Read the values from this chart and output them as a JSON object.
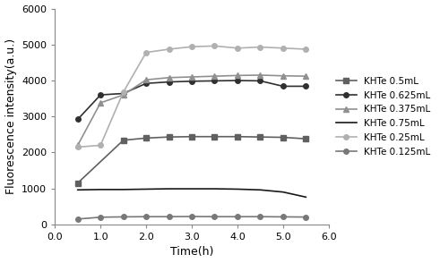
{
  "title": "",
  "xlabel": "Time(h)",
  "ylabel": "Fluorescence intensity(a.u.)",
  "xlim": [
    0.0,
    6.0
  ],
  "ylim": [
    0,
    6000
  ],
  "yticks": [
    0,
    1000,
    2000,
    3000,
    4000,
    5000,
    6000
  ],
  "xticks": [
    0.0,
    1.0,
    2.0,
    3.0,
    4.0,
    5.0,
    6.0
  ],
  "series": [
    {
      "label": "KHTe 0.5mL",
      "color": "#606060",
      "marker": "s",
      "markersize": 4,
      "linestyle": "-",
      "linewidth": 1.2,
      "x": [
        0.5,
        1.5,
        2.0,
        2.5,
        3.0,
        3.5,
        4.0,
        4.5,
        5.0,
        5.5
      ],
      "y": [
        1150,
        2340,
        2400,
        2430,
        2440,
        2440,
        2440,
        2430,
        2420,
        2380
      ]
    },
    {
      "label": "KHTe 0.625mL",
      "color": "#303030",
      "marker": "o",
      "markersize": 4,
      "linestyle": "-",
      "linewidth": 1.2,
      "x": [
        0.5,
        1.0,
        1.5,
        2.0,
        2.5,
        3.0,
        3.5,
        4.0,
        4.5,
        5.0,
        5.5
      ],
      "y": [
        2920,
        3600,
        3640,
        3920,
        3960,
        3980,
        3990,
        4000,
        3990,
        3840,
        3840
      ]
    },
    {
      "label": "KHTe 0.375mL",
      "color": "#909090",
      "marker": "^",
      "markersize": 5,
      "linestyle": "-",
      "linewidth": 1.2,
      "x": [
        0.5,
        1.0,
        1.5,
        2.0,
        2.5,
        3.0,
        3.5,
        4.0,
        4.5,
        5.0,
        5.5
      ],
      "y": [
        2200,
        3380,
        3600,
        4020,
        4080,
        4100,
        4120,
        4140,
        4150,
        4130,
        4120
      ]
    },
    {
      "label": "KHTe 0.75mL",
      "color": "#181818",
      "marker": null,
      "markersize": 0,
      "linestyle": "-",
      "linewidth": 1.2,
      "x": [
        0.5,
        1.0,
        1.5,
        2.0,
        2.5,
        3.0,
        3.5,
        4.0,
        4.5,
        5.0,
        5.5
      ],
      "y": [
        960,
        970,
        970,
        980,
        990,
        990,
        990,
        980,
        960,
        900,
        760
      ]
    },
    {
      "label": "KHTe 0.25mL",
      "color": "#b0b0b0",
      "marker": "o",
      "markersize": 4,
      "linestyle": "-",
      "linewidth": 1.2,
      "x": [
        0.5,
        1.0,
        1.5,
        2.0,
        2.5,
        3.0,
        3.5,
        4.0,
        4.5,
        5.0,
        5.5
      ],
      "y": [
        2150,
        2200,
        3680,
        4780,
        4870,
        4940,
        4960,
        4900,
        4930,
        4900,
        4870
      ]
    },
    {
      "label": "KHTe 0.125mL",
      "color": "#787878",
      "marker": "o",
      "markersize": 4,
      "linestyle": "-",
      "linewidth": 1.2,
      "x": [
        0.5,
        1.0,
        1.5,
        2.0,
        2.5,
        3.0,
        3.5,
        4.0,
        4.5,
        5.0,
        5.5
      ],
      "y": [
        150,
        200,
        210,
        215,
        215,
        220,
        215,
        215,
        215,
        210,
        205
      ]
    }
  ],
  "background_color": "#ffffff",
  "legend_fontsize": 7.5,
  "axis_fontsize": 9,
  "tick_fontsize": 8,
  "figsize": [
    4.91,
    2.94
  ],
  "dpi": 100
}
